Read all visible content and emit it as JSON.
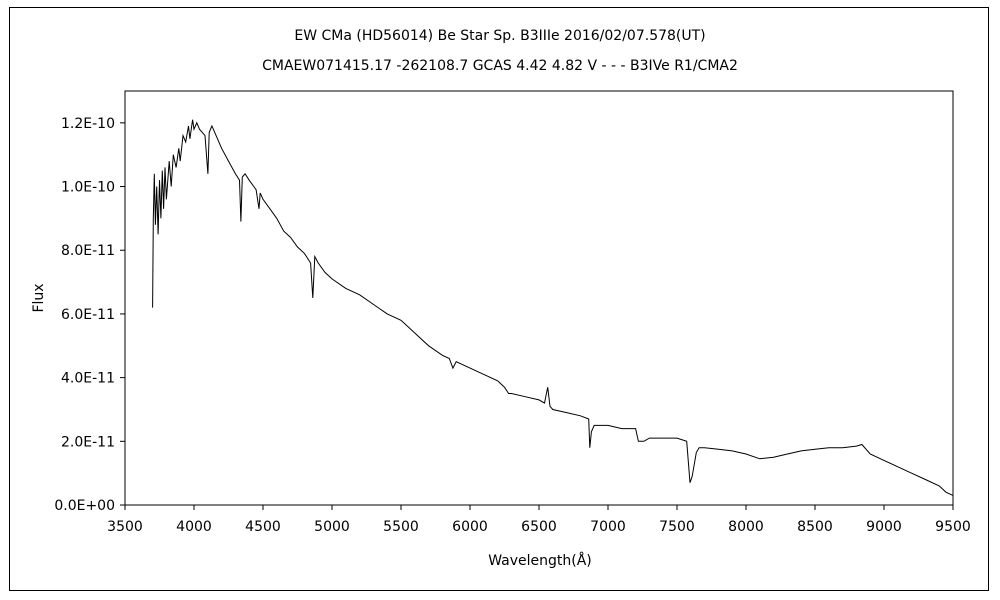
{
  "chart_data": {
    "type": "line",
    "title": "EW CMa (HD56014)    Be Star    Sp. B3IIIe    2016/02/07.578(UT)",
    "subtitle": "CMAEW071415.17 -262108.7 GCAS 4.42 4.82 V - - - B3IVe R1/CMA2",
    "xlabel": "Wavelength(Å)",
    "ylabel": "Flux",
    "xlim": [
      3500,
      9500
    ],
    "ylim": [
      0,
      1.3e-10
    ],
    "grid": false,
    "x_ticks": [
      3500,
      4000,
      4500,
      5000,
      5500,
      6000,
      6500,
      7000,
      7500,
      8000,
      8500,
      9000,
      9500
    ],
    "x_tick_labels": [
      "3500",
      "4000",
      "4500",
      "5000",
      "5500",
      "6000",
      "6500",
      "7000",
      "7500",
      "8000",
      "8500",
      "9000",
      "9500"
    ],
    "y_ticks": [
      0,
      2e-11,
      4e-11,
      6e-11,
      8e-11,
      1e-10,
      1.2e-10
    ],
    "y_tick_labels": [
      "0.0E+00",
      "2.0E-11",
      "4.0E-11",
      "6.0E-11",
      "8.0E-11",
      "1.0E-10",
      "1.2E-10"
    ],
    "series": [
      {
        "color": "#000000",
        "x": [
          3700,
          3705,
          3712,
          3720,
          3730,
          3740,
          3750,
          3760,
          3770,
          3780,
          3790,
          3800,
          3820,
          3835,
          3850,
          3870,
          3890,
          3900,
          3920,
          3940,
          3960,
          3970,
          3990,
          4000,
          4020,
          4040,
          4060,
          4080,
          4101,
          4110,
          4130,
          4160,
          4200,
          4250,
          4300,
          4330,
          4340,
          4350,
          4370,
          4400,
          4450,
          4471,
          4480,
          4500,
          4550,
          4600,
          4650,
          4700,
          4750,
          4800,
          4845,
          4861,
          4875,
          4900,
          4950,
          5000,
          5100,
          5200,
          5300,
          5400,
          5500,
          5600,
          5700,
          5800,
          5850,
          5876,
          5900,
          6000,
          6100,
          6200,
          6250,
          6280,
          6300,
          6400,
          6500,
          6540,
          6563,
          6580,
          6600,
          6700,
          6800,
          6860,
          6868,
          6880,
          6900,
          7000,
          7100,
          7200,
          7220,
          7260,
          7300,
          7400,
          7500,
          7570,
          7594,
          7610,
          7640,
          7660,
          7700,
          7800,
          7900,
          8000,
          8100,
          8200,
          8300,
          8400,
          8500,
          8600,
          8700,
          8800,
          8840,
          8900,
          9000,
          9100,
          9200,
          9300,
          9400,
          9450,
          9500
        ],
        "y": [
          6.2e-11,
          9e-11,
          1.04e-10,
          8.8e-11,
          1e-10,
          8.5e-11,
          1.02e-10,
          9e-11,
          1.05e-10,
          9.3e-11,
          1.06e-10,
          9.6e-11,
          1.08e-10,
          1e-10,
          1.1e-10,
          1.06e-10,
          1.12e-10,
          1.08e-10,
          1.16e-10,
          1.14e-10,
          1.19e-10,
          1.15e-10,
          1.21e-10,
          1.18e-10,
          1.2e-10,
          1.18e-10,
          1.17e-10,
          1.16e-10,
          1.04e-10,
          1.17e-10,
          1.19e-10,
          1.16e-10,
          1.12e-10,
          1.08e-10,
          1.04e-10,
          1.02e-10,
          8.9e-11,
          1.03e-10,
          1.04e-10,
          1.02e-10,
          9.9e-11,
          9.3e-11,
          9.8e-11,
          9.6e-11,
          9.3e-11,
          9e-11,
          8.6e-11,
          8.4e-11,
          8.1e-11,
          7.9e-11,
          7.6e-11,
          6.5e-11,
          7.8e-11,
          7.6e-11,
          7.3e-11,
          7.1e-11,
          6.8e-11,
          6.6e-11,
          6.3e-11,
          6e-11,
          5.8e-11,
          5.4e-11,
          5e-11,
          4.7e-11,
          4.6e-11,
          4.3e-11,
          4.5e-11,
          4.3e-11,
          4.1e-11,
          3.9e-11,
          3.7e-11,
          3.5e-11,
          3.5e-11,
          3.4e-11,
          3.3e-11,
          3.2e-11,
          3.7e-11,
          3.1e-11,
          3e-11,
          2.9e-11,
          2.8e-11,
          2.7e-11,
          1.8e-11,
          2.3e-11,
          2.5e-11,
          2.5e-11,
          2.4e-11,
          2.4e-11,
          2e-11,
          2e-11,
          2.1e-11,
          2.1e-11,
          2.1e-11,
          2e-11,
          7e-12,
          9e-12,
          1.65e-11,
          1.8e-11,
          1.8e-11,
          1.75e-11,
          1.7e-11,
          1.6e-11,
          1.45e-11,
          1.5e-11,
          1.6e-11,
          1.7e-11,
          1.75e-11,
          1.8e-11,
          1.8e-11,
          1.85e-11,
          1.9e-11,
          1.6e-11,
          1.4e-11,
          1.2e-11,
          1e-11,
          8e-12,
          6e-12,
          4e-12,
          3e-12
        ]
      }
    ]
  }
}
